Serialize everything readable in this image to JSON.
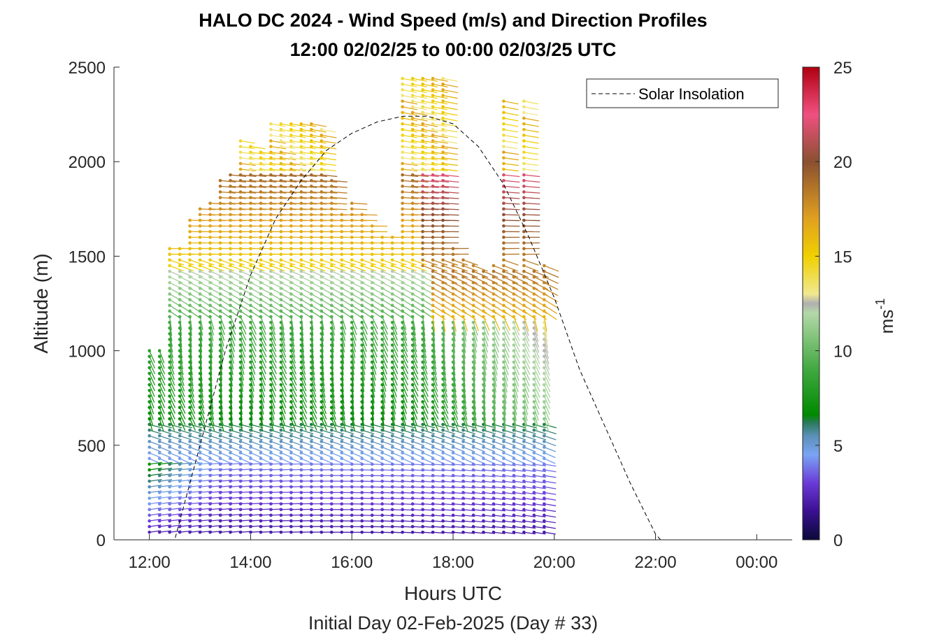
{
  "chart_data": {
    "type": "wind_barb_profile",
    "title": "HALO DC 2024 - Wind Speed (m/s) and Direction Profiles",
    "subtitle": "12:00 02/02/25 to 00:00 02/03/25  UTC",
    "xlabel": "Hours UTC",
    "xlabel2": "Initial Day 02-Feb-2025 (Day # 33)",
    "ylabel": "Altitude (m)",
    "x_ticks": [
      "12:00",
      "14:00",
      "16:00",
      "18:00",
      "20:00",
      "22:00",
      "00:00"
    ],
    "x_tick_hours": [
      12,
      14,
      16,
      18,
      20,
      22,
      24
    ],
    "xlim_hours": [
      11.3,
      24.7
    ],
    "y_ticks": [
      "0",
      "500",
      "1000",
      "1500",
      "2000",
      "2500"
    ],
    "y_tick_values": [
      0,
      500,
      1000,
      1500,
      2000,
      2500
    ],
    "ylim": [
      0,
      2500
    ],
    "colorbar": {
      "label": "ms",
      "label_exp": "-1",
      "range": [
        0,
        25
      ],
      "ticks": [
        "0",
        "5",
        "10",
        "15",
        "20",
        "25"
      ],
      "tick_values": [
        0,
        5,
        10,
        15,
        20,
        25
      ],
      "stops": [
        {
          "v": 0,
          "c": "#0a0a3a"
        },
        {
          "v": 1.5,
          "c": "#3a1090"
        },
        {
          "v": 3,
          "c": "#6a3ad8"
        },
        {
          "v": 4.5,
          "c": "#7aa4f4"
        },
        {
          "v": 5.5,
          "c": "#5a90b8"
        },
        {
          "v": 6.2,
          "c": "#2a7a5a"
        },
        {
          "v": 6.6,
          "c": "#008a00"
        },
        {
          "v": 9,
          "c": "#40a840"
        },
        {
          "v": 12,
          "c": "#b4d8a8"
        },
        {
          "v": 12.5,
          "c": "#b0b0b0"
        },
        {
          "v": 13,
          "c": "#f0e890"
        },
        {
          "v": 15,
          "c": "#f0d000"
        },
        {
          "v": 17,
          "c": "#e0a020"
        },
        {
          "v": 20,
          "c": "#8a5030"
        },
        {
          "v": 22.5,
          "c": "#f05080"
        },
        {
          "v": 25,
          "c": "#b00010"
        }
      ]
    },
    "legend": {
      "label": "Solar Insolation",
      "position": "top-right"
    },
    "solar_insolation": {
      "style": "dashed",
      "points_hours_alt": [
        [
          11.3,
          0
        ],
        [
          12.5,
          0
        ],
        [
          13.0,
          500
        ],
        [
          13.5,
          1000
        ],
        [
          14.0,
          1400
        ],
        [
          14.5,
          1700
        ],
        [
          15.0,
          1900
        ],
        [
          15.5,
          2060
        ],
        [
          16.0,
          2150
        ],
        [
          16.5,
          2210
        ],
        [
          17.0,
          2240
        ],
        [
          17.5,
          2240
        ],
        [
          18.0,
          2200
        ],
        [
          18.5,
          2080
        ],
        [
          19.0,
          1880
        ],
        [
          19.5,
          1600
        ],
        [
          20.0,
          1280
        ],
        [
          20.5,
          900
        ],
        [
          21.0,
          600
        ],
        [
          21.5,
          300
        ],
        [
          22.0,
          30
        ],
        [
          22.1,
          0
        ],
        [
          24.7,
          0
        ]
      ]
    },
    "wind_profiles": {
      "time_start_hours": 12.0,
      "time_step_hours": 0.2,
      "profile_count": 40,
      "min_altitude_m": 40,
      "altitude_step_m": 30,
      "columns": [
        {
          "t": 12.0,
          "top": 1020
        },
        {
          "t": 12.2,
          "top": 1020
        },
        {
          "t": 12.4,
          "top": 1560
        },
        {
          "t": 12.6,
          "top": 1560
        },
        {
          "t": 12.8,
          "top": 1700
        },
        {
          "t": 13.0,
          "top": 1760
        },
        {
          "t": 13.2,
          "top": 1780
        },
        {
          "t": 13.4,
          "top": 1900
        },
        {
          "t": 13.6,
          "top": 1940
        },
        {
          "t": 13.8,
          "top": 2130
        },
        {
          "t": 14.0,
          "top": 2100
        },
        {
          "t": 14.2,
          "top": 2050
        },
        {
          "t": 14.4,
          "top": 2200
        },
        {
          "t": 14.6,
          "top": 2200
        },
        {
          "t": 14.8,
          "top": 2200
        },
        {
          "t": 15.0,
          "top": 2200
        },
        {
          "t": 15.2,
          "top": 2220
        },
        {
          "t": 15.4,
          "top": 2190
        },
        {
          "t": 15.6,
          "top": 1900
        },
        {
          "t": 15.8,
          "top": 1720
        },
        {
          "t": 16.0,
          "top": 1780
        },
        {
          "t": 16.2,
          "top": 1720
        },
        {
          "t": 16.4,
          "top": 1660
        },
        {
          "t": 16.6,
          "top": 1620
        },
        {
          "t": 16.8,
          "top": 1600
        },
        {
          "t": 17.0,
          "top": 2450
        },
        {
          "t": 17.2,
          "top": 2450
        },
        {
          "t": 17.4,
          "top": 2450
        },
        {
          "t": 17.6,
          "top": 2450
        },
        {
          "t": 17.8,
          "top": 2450
        },
        {
          "t": 18.0,
          "top": 1540
        },
        {
          "t": 18.2,
          "top": 1500
        },
        {
          "t": 18.4,
          "top": 1460
        },
        {
          "t": 18.6,
          "top": 1420
        },
        {
          "t": 18.8,
          "top": 1460
        },
        {
          "t": 19.0,
          "top": 2320
        },
        {
          "t": 19.2,
          "top": 1440
        },
        {
          "t": 19.4,
          "top": 2340
        },
        {
          "t": 19.6,
          "top": 1440
        },
        {
          "t": 19.8,
          "top": 1460
        }
      ]
    }
  }
}
